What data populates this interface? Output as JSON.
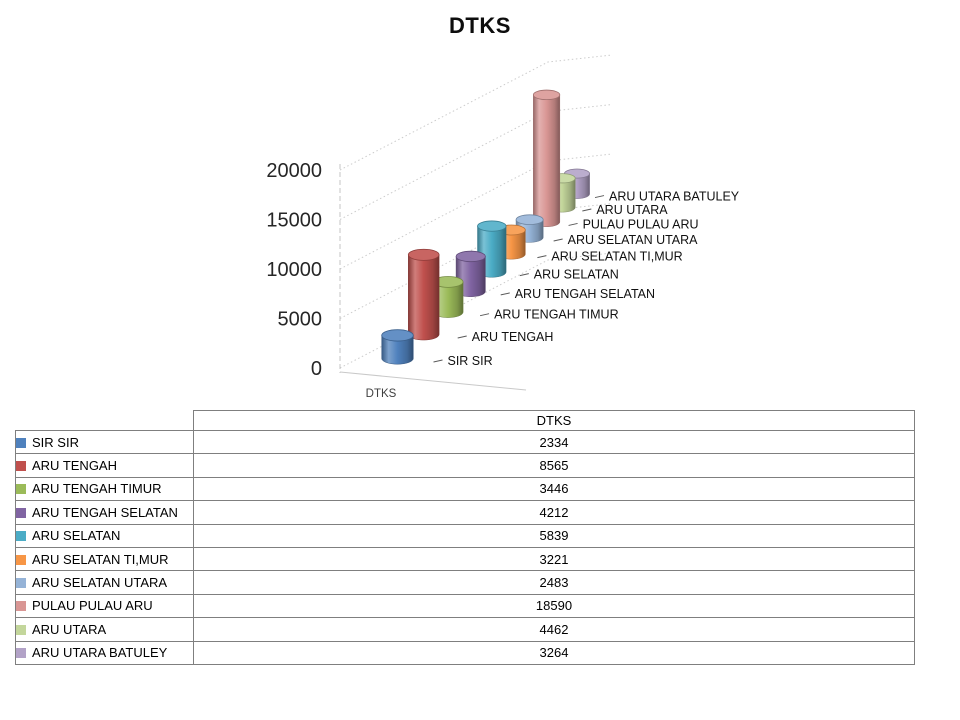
{
  "chart": {
    "title": "DTKS"
  },
  "chart_data": {
    "type": "bar",
    "subtype": "3d-cylinder",
    "title": "DTKS",
    "categories": [
      "SIR SIR",
      "ARU TENGAH",
      "ARU TENGAH TIMUR",
      "ARU TENGAH SELATAN",
      "ARU SELATAN",
      "ARU SELATAN TI,MUR",
      "ARU SELATAN UTARA",
      "PULAU PULAU ARU",
      "ARU UTARA",
      "ARU UTARA BATULEY"
    ],
    "series": [
      {
        "name": "DTKS",
        "values": [
          2334,
          8565,
          3446,
          4212,
          5839,
          3221,
          2483,
          18590,
          4462,
          3264
        ]
      }
    ],
    "colors": [
      "#4F81BD",
      "#C0504D",
      "#9BBB59",
      "#8064A2",
      "#4BACC6",
      "#F79646",
      "#95B3D7",
      "#D99694",
      "#C3D69B",
      "#B2A2C7"
    ],
    "ylim": [
      0,
      20000
    ],
    "y_ticks": [
      "0",
      "5000",
      "10000",
      "15000",
      "20000"
    ],
    "xlabel": "DTKS",
    "ylabel": "",
    "grid": true,
    "legend_position": "data-table-left"
  },
  "table": {
    "value_header": "DTKS",
    "rows": [
      {
        "label": "SIR SIR",
        "value": "2334",
        "color": "#4F81BD"
      },
      {
        "label": "ARU TENGAH",
        "value": "8565",
        "color": "#C0504D"
      },
      {
        "label": "ARU TENGAH TIMUR",
        "value": "3446",
        "color": "#9BBB59"
      },
      {
        "label": "ARU TENGAH SELATAN",
        "value": "4212",
        "color": "#8064A2"
      },
      {
        "label": "ARU SELATAN",
        "value": "5839",
        "color": "#4BACC6"
      },
      {
        "label": "ARU SELATAN TI,MUR",
        "value": "3221",
        "color": "#F79646"
      },
      {
        "label": "ARU SELATAN UTARA",
        "value": "2483",
        "color": "#95B3D7"
      },
      {
        "label": "PULAU PULAU ARU",
        "value": "18590",
        "color": "#D99694"
      },
      {
        "label": "ARU UTARA",
        "value": "4462",
        "color": "#C3D69B"
      },
      {
        "label": "ARU UTARA BATULEY",
        "value": "3264",
        "color": "#B2A2C7"
      }
    ]
  }
}
